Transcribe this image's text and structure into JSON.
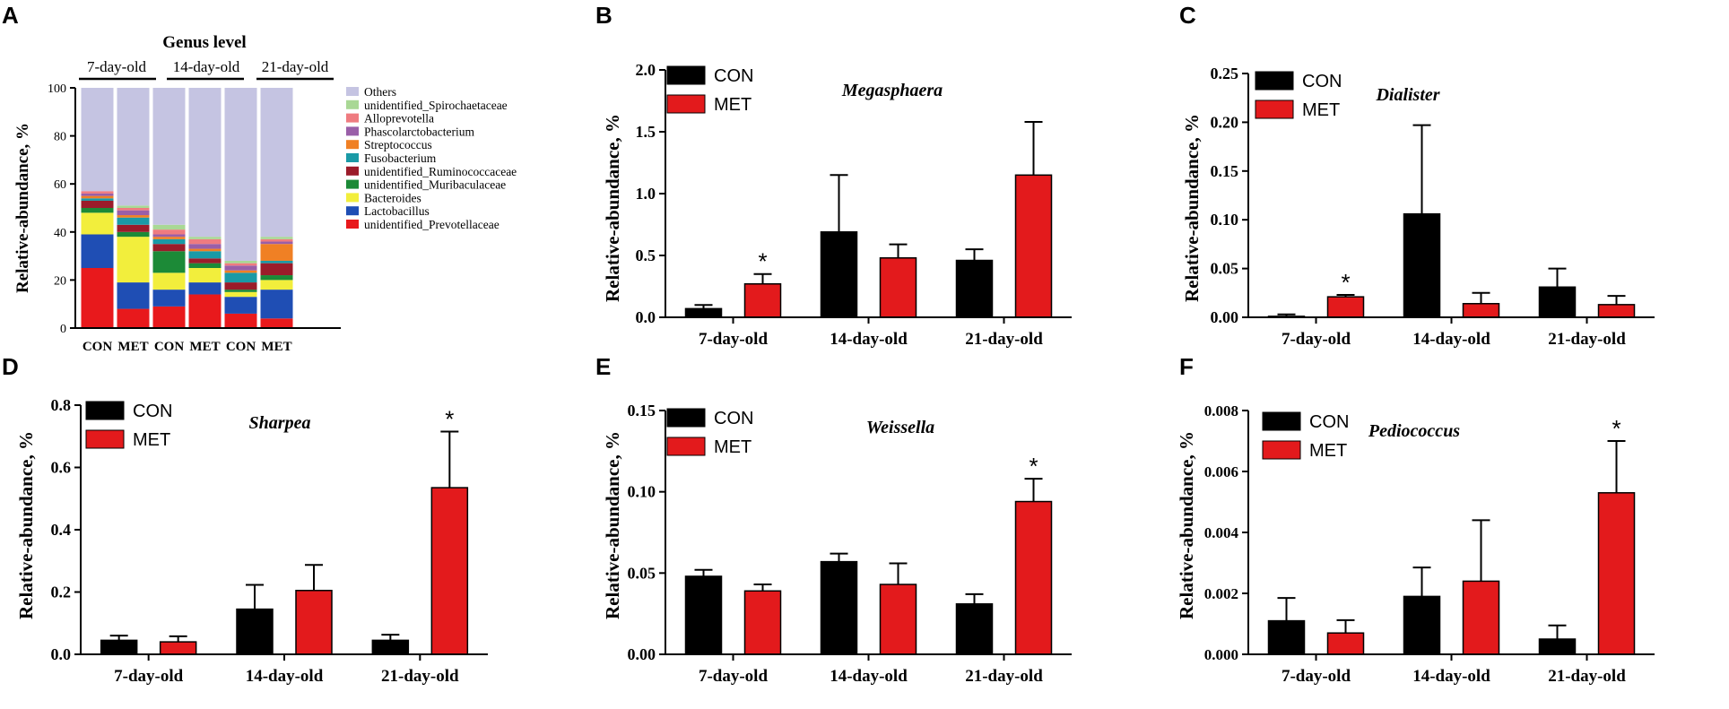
{
  "colors": {
    "CON": "#000000",
    "MET": "#e31a1c"
  },
  "chart_data": [
    {
      "panel": "A",
      "type": "bar",
      "stacked": true,
      "title": "Genus level",
      "ylabel": "Relative-abundance, %",
      "ylim": [
        0,
        100
      ],
      "yticks": [
        "0",
        "20",
        "40",
        "60",
        "80",
        "100"
      ],
      "groups": [
        "7-day-old",
        "14-day-old",
        "21-day-old"
      ],
      "categories": [
        "CON",
        "MET",
        "CON",
        "MET",
        "CON",
        "MET"
      ],
      "legend": [
        "Others",
        "unidentified_Spirochaetaceae",
        "Alloprevotella",
        "Phascolarctobacterium",
        "Streptococcus",
        "Fusobacterium",
        "unidentified_Ruminococcaceae",
        "unidentified_Muribaculaceae",
        "Bacteroides",
        "Lactobacillus",
        "unidentified_Prevotellaceae"
      ],
      "series": [
        {
          "name": "unidentified_Prevotellaceae",
          "color": "#e8191c",
          "values": [
            25,
            8,
            9,
            14,
            6,
            4
          ]
        },
        {
          "name": "Lactobacillus",
          "color": "#1f4eb4",
          "values": [
            14,
            11,
            7,
            5,
            7,
            12
          ]
        },
        {
          "name": "Bacteroides",
          "color": "#f2ee3c",
          "values": [
            9,
            19,
            7,
            6,
            2,
            4
          ]
        },
        {
          "name": "unidentified_Muribaculaceae",
          "color": "#1c8a37",
          "values": [
            2,
            2,
            9,
            2,
            1,
            2
          ]
        },
        {
          "name": "unidentified_Ruminococcaceae",
          "color": "#9b1c2a",
          "values": [
            3,
            3,
            3,
            2,
            3,
            5
          ]
        },
        {
          "name": "Fusobacterium",
          "color": "#1a9aa6",
          "values": [
            1,
            3,
            2,
            3,
            4,
            1
          ]
        },
        {
          "name": "Streptococcus",
          "color": "#f08024",
          "values": [
            1,
            1,
            1,
            1,
            1,
            7
          ]
        },
        {
          "name": "Phascolarctobacterium",
          "color": "#9a5fa8",
          "values": [
            1,
            2,
            1,
            2,
            2,
            1
          ]
        },
        {
          "name": "Alloprevotella",
          "color": "#ef7b80",
          "values": [
            1,
            1,
            2,
            2,
            1,
            1
          ]
        },
        {
          "name": "unidentified_Spirochaetaceae",
          "color": "#a9d895",
          "values": [
            0,
            1,
            2,
            1,
            1,
            1
          ]
        },
        {
          "name": "Others",
          "color": "#c5c4e2",
          "values": [
            43,
            49,
            57,
            62,
            72,
            62
          ]
        }
      ]
    },
    {
      "panel": "B",
      "type": "bar",
      "title": "Megasphaera",
      "ylabel": "Relative-abundance, %",
      "categories": [
        "7-day-old",
        "14-day-old",
        "21-day-old"
      ],
      "ylim": [
        0,
        2.0
      ],
      "yticks": [
        "0.0",
        "0.5",
        "1.0",
        "1.5",
        "2.0"
      ],
      "legend": [
        "CON",
        "MET"
      ],
      "series": [
        {
          "name": "CON",
          "values": [
            0.07,
            0.69,
            0.46
          ],
          "err": [
            0.03,
            0.46,
            0.09
          ]
        },
        {
          "name": "MET",
          "values": [
            0.27,
            0.48,
            1.15
          ],
          "err": [
            0.08,
            0.11,
            0.43
          ]
        }
      ],
      "sig": [
        {
          "series": "MET",
          "index": 0,
          "label": "*"
        }
      ]
    },
    {
      "panel": "C",
      "type": "bar",
      "title": "Dialister",
      "ylabel": "Relative-abundance, %",
      "categories": [
        "7-day-old",
        "14-day-old",
        "21-day-old"
      ],
      "ylim": [
        0,
        0.25
      ],
      "yticks": [
        "0.00",
        "0.05",
        "0.10",
        "0.15",
        "0.20",
        "0.25"
      ],
      "legend": [
        "CON",
        "MET"
      ],
      "series": [
        {
          "name": "CON",
          "values": [
            0.001,
            0.106,
            0.031
          ],
          "err": [
            0.002,
            0.091,
            0.019
          ]
        },
        {
          "name": "MET",
          "values": [
            0.021,
            0.014,
            0.013
          ],
          "err": [
            0.002,
            0.011,
            0.009
          ]
        }
      ],
      "sig": [
        {
          "series": "MET",
          "index": 0,
          "label": "*"
        }
      ]
    },
    {
      "panel": "D",
      "type": "bar",
      "title": "Sharpea",
      "ylabel": "Relative-abundance, %",
      "categories": [
        "7-day-old",
        "14-day-old",
        "21-day-old"
      ],
      "ylim": [
        0,
        0.8
      ],
      "yticks": [
        "0.0",
        "0.2",
        "0.4",
        "0.6",
        "0.8"
      ],
      "legend": [
        "CON",
        "MET"
      ],
      "series": [
        {
          "name": "CON",
          "values": [
            0.045,
            0.145,
            0.045
          ],
          "err": [
            0.015,
            0.078,
            0.018
          ]
        },
        {
          "name": "MET",
          "values": [
            0.04,
            0.205,
            0.535
          ],
          "err": [
            0.018,
            0.082,
            0.18
          ]
        }
      ],
      "sig": [
        {
          "series": "MET",
          "index": 2,
          "label": "*"
        }
      ]
    },
    {
      "panel": "E",
      "type": "bar",
      "title": "Weissella",
      "ylabel": "Relative-abundance, %",
      "categories": [
        "7-day-old",
        "14-day-old",
        "21-day-old"
      ],
      "ylim": [
        0,
        0.15
      ],
      "yticks": [
        "0.00",
        "0.05",
        "0.10",
        "0.15"
      ],
      "legend": [
        "CON",
        "MET"
      ],
      "series": [
        {
          "name": "CON",
          "values": [
            0.048,
            0.057,
            0.031
          ],
          "err": [
            0.004,
            0.005,
            0.006
          ]
        },
        {
          "name": "MET",
          "values": [
            0.039,
            0.043,
            0.094
          ],
          "err": [
            0.004,
            0.013,
            0.014
          ]
        }
      ],
      "sig": [
        {
          "series": "MET",
          "index": 2,
          "label": "*"
        }
      ]
    },
    {
      "panel": "F",
      "type": "bar",
      "title": "Pediococcus",
      "ylabel": "Relative-abundance, %",
      "categories": [
        "7-day-old",
        "14-day-old",
        "21-day-old"
      ],
      "ylim": [
        0,
        0.008
      ],
      "yticks": [
        "0.000",
        "0.002",
        "0.004",
        "0.006",
        "0.008"
      ],
      "legend": [
        "CON",
        "MET"
      ],
      "series": [
        {
          "name": "CON",
          "values": [
            0.0011,
            0.0019,
            0.0005
          ],
          "err": [
            0.00075,
            0.00095,
            0.00045
          ]
        },
        {
          "name": "MET",
          "values": [
            0.0007,
            0.0024,
            0.0053
          ],
          "err": [
            0.00042,
            0.002,
            0.0017
          ]
        }
      ],
      "sig": [
        {
          "series": "MET",
          "index": 2,
          "label": "*"
        }
      ]
    }
  ]
}
